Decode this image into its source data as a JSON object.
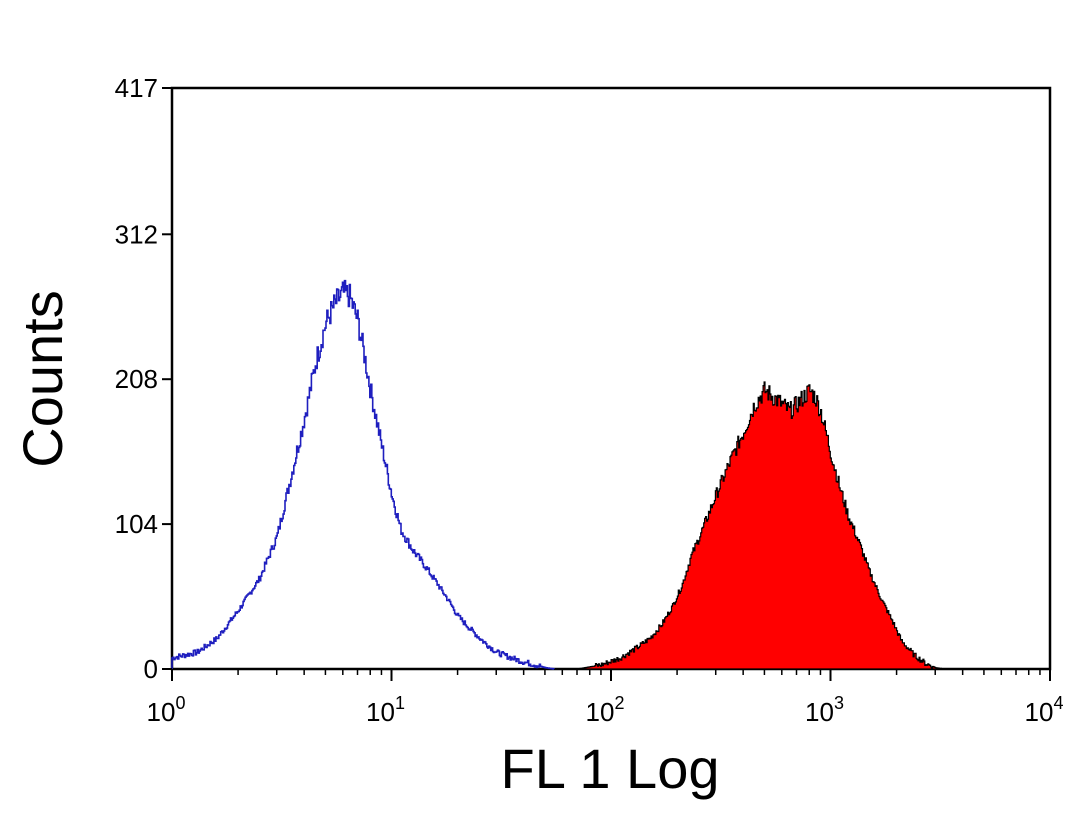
{
  "chart_data": {
    "type": "area",
    "title": "",
    "xlabel": "FL 1 Log",
    "ylabel": "Counts",
    "xscale": "log",
    "xlim": [
      1,
      10000
    ],
    "ylim": [
      0,
      417
    ],
    "x_ticks": [
      {
        "value": 1,
        "base": "10",
        "exp": "0"
      },
      {
        "value": 10,
        "base": "10",
        "exp": "1"
      },
      {
        "value": 100,
        "base": "10",
        "exp": "2"
      },
      {
        "value": 1000,
        "base": "10",
        "exp": "3"
      },
      {
        "value": 10000,
        "base": "10",
        "exp": "4"
      }
    ],
    "y_ticks": [
      {
        "value": 0,
        "label": "0"
      },
      {
        "value": 104,
        "label": "104"
      },
      {
        "value": 208,
        "label": "208"
      },
      {
        "value": 312,
        "label": "312"
      },
      {
        "value": 417,
        "label": "417"
      }
    ],
    "grid": false,
    "legend": "none",
    "series": [
      {
        "style": "outline",
        "color": "#1f1fbf",
        "x": [
          1.0,
          1.3,
          1.6,
          2.0,
          2.5,
          3.0,
          3.5,
          4.0,
          4.5,
          5.0,
          5.5,
          6.0,
          6.4,
          7.0,
          7.5,
          8.0,
          9.0,
          10.0,
          11.0,
          12.5,
          14.0,
          16.0,
          18.0,
          20.0,
          23.0,
          26.0,
          30.0,
          35.0,
          40.0,
          45.0,
          50.0,
          55.0
        ],
        "y": [
          8,
          12,
          22,
          42,
          65,
          95,
          140,
          180,
          220,
          248,
          262,
          270,
          268,
          250,
          225,
          200,
          160,
          125,
          100,
          85,
          75,
          62,
          50,
          38,
          28,
          20,
          12,
          8,
          5,
          3,
          1,
          0
        ]
      },
      {
        "style": "filled",
        "color": "#ff0000",
        "outline": "#000000",
        "x": [
          70,
          90,
          110,
          130,
          150,
          170,
          190,
          210,
          230,
          260,
          300,
          350,
          400,
          450,
          500,
          550,
          600,
          650,
          700,
          750,
          800,
          850,
          900,
          950,
          1000,
          1100,
          1200,
          1350,
          1500,
          1700,
          1900,
          2100,
          2400,
          2700,
          3000,
          3300
        ],
        "y": [
          0,
          3,
          8,
          15,
          22,
          32,
          45,
          60,
          80,
          100,
          125,
          150,
          170,
          190,
          200,
          195,
          190,
          185,
          190,
          195,
          200,
          195,
          185,
          170,
          155,
          130,
          110,
          90,
          70,
          50,
          35,
          20,
          10,
          4,
          1,
          0
        ]
      }
    ]
  }
}
